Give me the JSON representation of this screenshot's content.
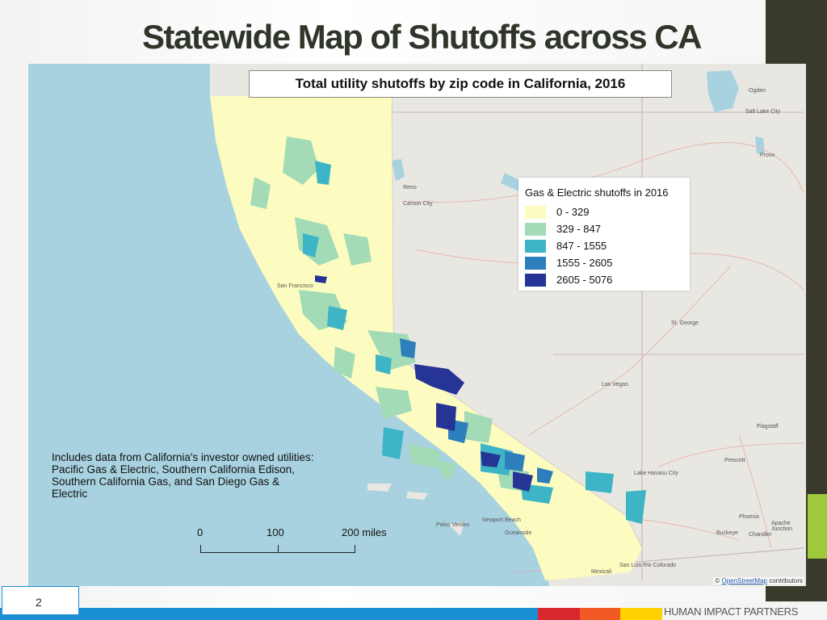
{
  "slide": {
    "title": "Statewide Map of Shutoffs across CA",
    "page_number": "2",
    "brand": "HUMAN IMPACT PARTNERS"
  },
  "map": {
    "title": "Total utility shutoffs by zip code in California, 2016",
    "legend": {
      "title": "Gas & Electric shutoffs in 2016",
      "classes": [
        {
          "label": "0 - 329",
          "color": "#fdfcc0"
        },
        {
          "label": "329 - 847",
          "color": "#a3dbb7"
        },
        {
          "label": "847 - 1555",
          "color": "#3eb5c6"
        },
        {
          "label": "1555 - 2605",
          "color": "#2c7fbb"
        },
        {
          "label": "2605 - 5076",
          "color": "#263495"
        }
      ]
    },
    "note": "Includes data from California's investor owned utilities: Pacific Gas & Electric, Southern California Edison, Southern California Gas, and San Diego Gas & Electric",
    "scale": {
      "labels": [
        "0",
        "100",
        "200 miles"
      ]
    },
    "attribution": {
      "prefix": "©",
      "link": "OpenStreetMap",
      "suffix": "contributors"
    },
    "cities": [
      "Ogden",
      "Salt Lake City",
      "Provo",
      "Reno",
      "Carson City",
      "San Francisco",
      "St. George",
      "Las Vegas",
      "Flagstaff",
      "Lake Havasu City",
      "Prescott",
      "Phoenix",
      "Apache Junction",
      "Chandler",
      "Buckeye",
      "Palos Verdes",
      "Newport Beach",
      "Oceanside",
      "Mexicali",
      "San Luis Rio Colorado"
    ],
    "colors": {
      "ocean": "#a9d2e0",
      "land": "#e9e7e2",
      "water": "#a9d2e0"
    }
  }
}
